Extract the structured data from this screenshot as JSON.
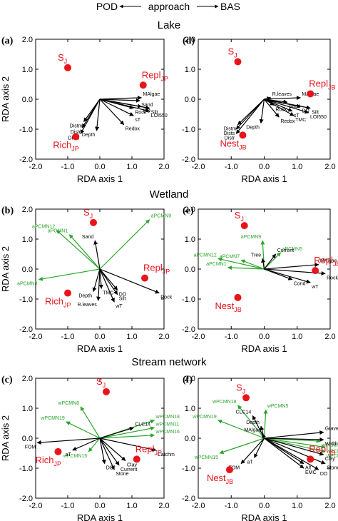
{
  "header": {
    "left": "POD",
    "center": "approach",
    "right": "BAS"
  },
  "sections": [
    "Lake",
    "Wetland",
    "Stream network"
  ],
  "axis_labels": {
    "x": "RDA axis 1",
    "y": "RDA axis 2"
  },
  "colors": {
    "sample": "#e8141c",
    "env_arrow": "#000000",
    "pcmn_arrow": "#2aa52a"
  },
  "chart_data": [
    {
      "panel": "(a)",
      "type": "scatter",
      "section": "Lake",
      "xlabel": "RDA axis 1",
      "ylabel": "RDA axis 2",
      "xlim": [
        -2.0,
        2.0
      ],
      "ylim": [
        -2.0,
        2.0
      ],
      "xticks": [
        "-2.0",
        "-1.0",
        "0.0",
        "1.0",
        "2.0"
      ],
      "yticks": [
        "2.0",
        "1.0",
        "0.0",
        "-1.0",
        "-2.0"
      ],
      "points": [
        {
          "label": "S",
          "sub": "J",
          "x": -1.0,
          "y": 1.05
        },
        {
          "label": "Repl",
          "sub": "JP",
          "x": 1.35,
          "y": 0.47
        },
        {
          "label": "Rich",
          "sub": "JP",
          "x": -0.75,
          "y": -1.25
        }
      ],
      "env_arrows": [
        {
          "label": "MAlgae",
          "x": 1.3,
          "y": 0.05
        },
        {
          "label": "Sand",
          "x": 1.25,
          "y": -0.05
        },
        {
          "label": "DO",
          "x": 1.3,
          "y": -0.25
        },
        {
          "label": "Rock",
          "x": 1.05,
          "y": -0.3
        },
        {
          "label": "Silt",
          "x": 1.55,
          "y": -0.3
        },
        {
          "label": "LOI550",
          "x": 1.55,
          "y": -0.4
        },
        {
          "label": "sT",
          "x": 1.05,
          "y": -0.55
        },
        {
          "label": "Redox",
          "x": 0.75,
          "y": -0.85
        },
        {
          "label": "Depth",
          "x": -0.1,
          "y": -1.05
        },
        {
          "label": "Distm",
          "x": -0.5,
          "y": -0.75
        },
        {
          "label": "Distr",
          "x": -0.55,
          "y": -0.95
        },
        {
          "label": "Dists",
          "x": -0.6,
          "y": -1.15
        }
      ],
      "pcmn_arrows": []
    },
    {
      "panel": "(d)",
      "type": "scatter",
      "section": "Lake",
      "xlabel": "RDA axis 1",
      "ylabel": "",
      "xlim": [
        -2.0,
        2.0
      ],
      "ylim": [
        -2.0,
        2.0
      ],
      "xticks": [
        "-2.0",
        "-1.0",
        "0.0",
        "1.0",
        "2.0"
      ],
      "yticks": [
        "2.0",
        "1.0",
        "0.0",
        "-1.0",
        "-2.0"
      ],
      "points": [
        {
          "label": "S",
          "sub": "J",
          "x": -0.8,
          "y": 1.25
        },
        {
          "label": "Repl",
          "sub": "JB",
          "x": 1.4,
          "y": 0.18
        },
        {
          "label": "Nest",
          "sub": "JB",
          "x": -0.65,
          "y": -1.2
        }
      ],
      "env_arrows": [
        {
          "label": "R.leaves",
          "x": 0.2,
          "y": 0.05
        },
        {
          "label": "MAlgae",
          "x": 1.1,
          "y": 0.05
        },
        {
          "label": "Sand",
          "x": 0.7,
          "y": -0.1
        },
        {
          "label": "Rock",
          "x": 0.3,
          "y": -0.2
        },
        {
          "label": "DO",
          "x": 1.1,
          "y": -0.25
        },
        {
          "label": "Silt",
          "x": 1.4,
          "y": -0.3
        },
        {
          "label": "TMC",
          "x": 0.9,
          "y": -0.55
        },
        {
          "label": "sT",
          "x": 0.85,
          "y": -0.4
        },
        {
          "label": "LOI550",
          "x": 1.35,
          "y": -0.45
        },
        {
          "label": "Redox",
          "x": 0.45,
          "y": -0.6
        },
        {
          "label": "Depth",
          "x": -0.1,
          "y": -0.8
        },
        {
          "label": "Distm",
          "x": -0.8,
          "y": -0.85
        },
        {
          "label": "Dists",
          "x": -0.85,
          "y": -1.0
        },
        {
          "label": "Distr",
          "x": -0.85,
          "y": -1.15
        }
      ],
      "pcmn_arrows": []
    },
    {
      "panel": "(b)",
      "type": "scatter",
      "section": "Wetland",
      "xlabel": "RDA axis 1",
      "ylabel": "RDA axis 2",
      "xlim": [
        -2.0,
        2.0
      ],
      "ylim": [
        -2.0,
        2.0
      ],
      "xticks": [
        "-2.0",
        "-1.0",
        "0.0",
        "1.0",
        "2.0"
      ],
      "yticks": [
        "2.0",
        "1.0",
        "0.0",
        "-1.0",
        "-2.0"
      ],
      "points": [
        {
          "label": "S",
          "sub": "J",
          "x": -0.2,
          "y": 1.55
        },
        {
          "label": "Repl",
          "sub": "JP",
          "x": 1.4,
          "y": -0.3
        },
        {
          "label": "Rich",
          "sub": "JP",
          "x": -1.0,
          "y": -0.8
        }
      ],
      "env_arrows": [
        {
          "label": "Sand",
          "x": -0.15,
          "y": 0.95
        },
        {
          "label": "Depth",
          "x": -0.2,
          "y": -0.75
        },
        {
          "label": "TMC",
          "x": 0.05,
          "y": -0.65
        },
        {
          "label": "DO",
          "x": 0.55,
          "y": -0.7
        },
        {
          "label": "Silt",
          "x": 0.55,
          "y": -0.85
        },
        {
          "label": "R.leaves",
          "x": -0.05,
          "y": -1.05
        },
        {
          "label": "wT",
          "x": 0.45,
          "y": -1.1
        },
        {
          "label": "Rock",
          "x": 1.85,
          "y": -0.8
        }
      ],
      "pcmn_arrows": [
        {
          "label": "aPCMN9",
          "x": 1.55,
          "y": 1.65
        },
        {
          "label": "aPCMN12",
          "x": -1.35,
          "y": 1.3
        },
        {
          "label": "aPCMN1",
          "x": -0.95,
          "y": 1.15
        },
        {
          "label": "aPCMN8",
          "x": -1.9,
          "y": -0.35
        }
      ]
    },
    {
      "panel": "(e)",
      "type": "scatter",
      "section": "Wetland",
      "xlabel": "RDA axis 1",
      "ylabel": "",
      "xlim": [
        -2.0,
        2.0
      ],
      "ylim": [
        -2.0,
        2.0
      ],
      "xticks": [
        "-2.0",
        "-1.0",
        "0.0",
        "1.0",
        "2.0"
      ],
      "yticks": [
        "2.0",
        "1.0",
        "0.0",
        "-1.0",
        "-2.0"
      ],
      "points": [
        {
          "label": "S",
          "sub": "J",
          "x": -0.6,
          "y": 1.45
        },
        {
          "label": "Repl",
          "sub": "JB",
          "x": 1.55,
          "y": -0.05
        },
        {
          "label": "Nest",
          "sub": "JB",
          "x": -0.8,
          "y": -0.95
        }
      ],
      "env_arrows": [
        {
          "label": "Tree",
          "x": -0.05,
          "y": 0.35
        },
        {
          "label": "Current",
          "x": 0.35,
          "y": 0.5
        },
        {
          "label": "MAlgae",
          "x": 1.65,
          "y": 0.15
        },
        {
          "label": "Rock",
          "x": 1.85,
          "y": -0.15
        },
        {
          "label": "Cond",
          "x": 0.85,
          "y": -0.35
        },
        {
          "label": "wT",
          "x": 1.4,
          "y": -0.45
        }
      ],
      "pcmn_arrows": [
        {
          "label": "aPCMN9",
          "x": -0.05,
          "y": 0.95
        },
        {
          "label": "aPCMN5",
          "x": 0.5,
          "y": 0.55
        },
        {
          "label": "aPCMN12",
          "x": -1.4,
          "y": 0.35
        },
        {
          "label": "aPCMN7",
          "x": -0.7,
          "y": 0.3
        },
        {
          "label": "aPCMN1",
          "x": -1.1,
          "y": 0.05
        }
      ]
    },
    {
      "panel": "(c)",
      "type": "scatter",
      "section": "Stream network",
      "xlabel": "RDA axis 1",
      "ylabel": "RDA axis 2",
      "xlim": [
        -2.0,
        2.0
      ],
      "ylim": [
        -2.0,
        2.0
      ],
      "xticks": [
        "-2.0",
        "-1.0",
        "0.0",
        "1.0",
        "2.0"
      ],
      "yticks": [
        "2.0",
        "1.0",
        "0.0",
        "-1.0",
        "-2.0"
      ],
      "points": [
        {
          "label": "S",
          "sub": "J",
          "x": 0.2,
          "y": 1.55
        },
        {
          "label": "Repl",
          "sub": "JP",
          "x": 1.15,
          "y": -0.7
        },
        {
          "label": "Rich",
          "sub": "JP",
          "x": -1.3,
          "y": -0.45
        }
      ],
      "env_arrows": [
        {
          "label": "FOM",
          "x": -1.95,
          "y": -0.15
        },
        {
          "label": "aT",
          "x": -0.85,
          "y": -0.4
        },
        {
          "label": "CLC14",
          "x": 1.05,
          "y": 0.35
        },
        {
          "label": "Catchm",
          "x": 1.75,
          "y": -0.4
        },
        {
          "label": "Clay",
          "x": 0.8,
          "y": -0.75
        },
        {
          "label": "DO",
          "x": 0.15,
          "y": -0.85
        },
        {
          "label": "Current",
          "x": 0.6,
          "y": -0.9
        },
        {
          "label": "Stone",
          "x": 0.45,
          "y": -1.05
        }
      ],
      "pcmn_arrows": [
        {
          "label": "wPCMN8",
          "x": -0.6,
          "y": 1.05
        },
        {
          "label": "wPCMN19",
          "x": -1.05,
          "y": 0.55
        },
        {
          "label": "wPCMN18",
          "x": 1.7,
          "y": 0.6
        },
        {
          "label": "wPCMN11",
          "x": 1.7,
          "y": 0.35
        },
        {
          "label": "wPCMN16",
          "x": 1.7,
          "y": 0.1
        },
        {
          "label": "wPCMN15",
          "x": -0.35,
          "y": -0.45
        }
      ]
    },
    {
      "panel": "(f)",
      "type": "scatter",
      "section": "Stream network",
      "xlabel": "RDA axis 1",
      "ylabel": "",
      "xlim": [
        -2.0,
        2.0
      ],
      "ylim": [
        -2.0,
        2.0
      ],
      "xticks": [
        "-2.0",
        "-1.0",
        "0.0",
        "1.0",
        "2.0"
      ],
      "yticks": [
        "2.0",
        "1.0",
        "0.0",
        "-1.0",
        "-2.0"
      ],
      "points": [
        {
          "label": "S",
          "sub": "J",
          "x": -0.55,
          "y": 1.35
        },
        {
          "label": "Repl",
          "sub": "JB",
          "x": 1.4,
          "y": -0.7
        },
        {
          "label": "Nest",
          "sub": "JB",
          "x": -1.05,
          "y": -1.05
        }
      ],
      "env_arrows": [
        {
          "label": "CLC14",
          "x": -0.35,
          "y": 0.75
        },
        {
          "label": "Depth",
          "x": -0.1,
          "y": 0.4
        },
        {
          "label": "MAlgae",
          "x": -0.05,
          "y": 0.15
        },
        {
          "label": "FOM",
          "x": -0.7,
          "y": -0.85
        },
        {
          "label": "aT",
          "x": -0.3,
          "y": -0.65
        },
        {
          "label": "Gravel",
          "x": 1.8,
          "y": 0.2
        },
        {
          "label": "Width",
          "x": 1.8,
          "y": -0.05
        },
        {
          "label": "Clay",
          "x": 1.8,
          "y": -0.55
        },
        {
          "label": "Alt",
          "x": 1.2,
          "y": -0.85
        },
        {
          "label": "Stone",
          "x": 1.85,
          "y": -0.85
        },
        {
          "label": "EMC",
          "x": 1.2,
          "y": -1.0
        },
        {
          "label": "DO",
          "x": 1.65,
          "y": -1.05
        }
      ],
      "pcmn_arrows": [
        {
          "label": "wPCMN18",
          "x": -0.8,
          "y": 1.1
        },
        {
          "label": "wPCMN5",
          "x": 0.05,
          "y": 0.95
        },
        {
          "label": "wPCMN19",
          "x": -1.4,
          "y": 0.6
        },
        {
          "label": "wPCMN16",
          "x": 1.7,
          "y": -0.1
        },
        {
          "label": "wPCMN6",
          "x": 1.85,
          "y": -0.3
        },
        {
          "label": "wPCMN9",
          "x": 1.85,
          "y": -0.45
        },
        {
          "label": "wPCMN15",
          "x": -1.35,
          "y": -0.5
        }
      ]
    }
  ]
}
